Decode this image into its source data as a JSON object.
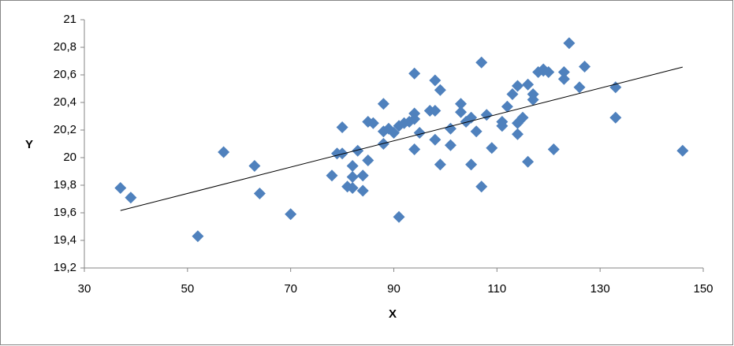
{
  "chart_data": {
    "type": "scatter",
    "xlabel": "X",
    "ylabel": "Y",
    "x": [
      37,
      39,
      52,
      57,
      63,
      64,
      70,
      78,
      79,
      80,
      80,
      81,
      82,
      82,
      82,
      83,
      84,
      84,
      85,
      85,
      86,
      88,
      88,
      88,
      89,
      90,
      91,
      91,
      92,
      93,
      94,
      94,
      94,
      94,
      95,
      97,
      98,
      98,
      98,
      99,
      99,
      101,
      101,
      103,
      103,
      104,
      105,
      105,
      106,
      107,
      107,
      108,
      109,
      111,
      111,
      112,
      113,
      114,
      114,
      114,
      115,
      116,
      116,
      117,
      117,
      118,
      119,
      119,
      120,
      121,
      123,
      123,
      124,
      126,
      127,
      133,
      133,
      146
    ],
    "y": [
      19.78,
      19.71,
      19.43,
      20.04,
      19.94,
      19.74,
      19.59,
      19.87,
      20.03,
      20.22,
      20.03,
      19.79,
      19.94,
      19.78,
      19.86,
      20.05,
      19.76,
      19.87,
      19.98,
      20.26,
      20.25,
      20.39,
      20.1,
      20.19,
      20.21,
      20.18,
      20.23,
      19.57,
      20.25,
      20.26,
      20.61,
      20.32,
      20.06,
      20.28,
      20.18,
      20.34,
      20.56,
      20.13,
      20.34,
      19.95,
      20.49,
      20.21,
      20.09,
      20.33,
      20.39,
      20.26,
      20.29,
      19.95,
      20.19,
      20.69,
      19.79,
      20.31,
      20.07,
      20.26,
      20.23,
      20.37,
      20.46,
      20.52,
      20.17,
      20.25,
      20.29,
      19.97,
      20.53,
      20.42,
      20.46,
      20.62,
      20.63,
      20.64,
      20.62,
      20.06,
      20.62,
      20.57,
      20.83,
      20.51,
      20.66,
      20.29,
      20.51,
      20.05
    ],
    "color": "#4f81bd",
    "trendline": true,
    "xlim": [
      30,
      150
    ],
    "xticks": [
      30,
      50,
      70,
      90,
      110,
      130,
      150
    ],
    "ylim": [
      19.2,
      21
    ],
    "yticks": [
      {
        "value": 19.2,
        "label": "19,2"
      },
      {
        "value": 19.4,
        "label": "19,4"
      },
      {
        "value": 19.6,
        "label": "19,6"
      },
      {
        "value": 19.8,
        "label": "19,8"
      },
      20,
      {
        "value": 20.2,
        "label": "20,2"
      },
      {
        "value": 20.4,
        "label": "20,4"
      },
      {
        "value": 20.6,
        "label": "20,6"
      },
      {
        "value": 20.8,
        "label": "20,8"
      },
      21
    ]
  }
}
